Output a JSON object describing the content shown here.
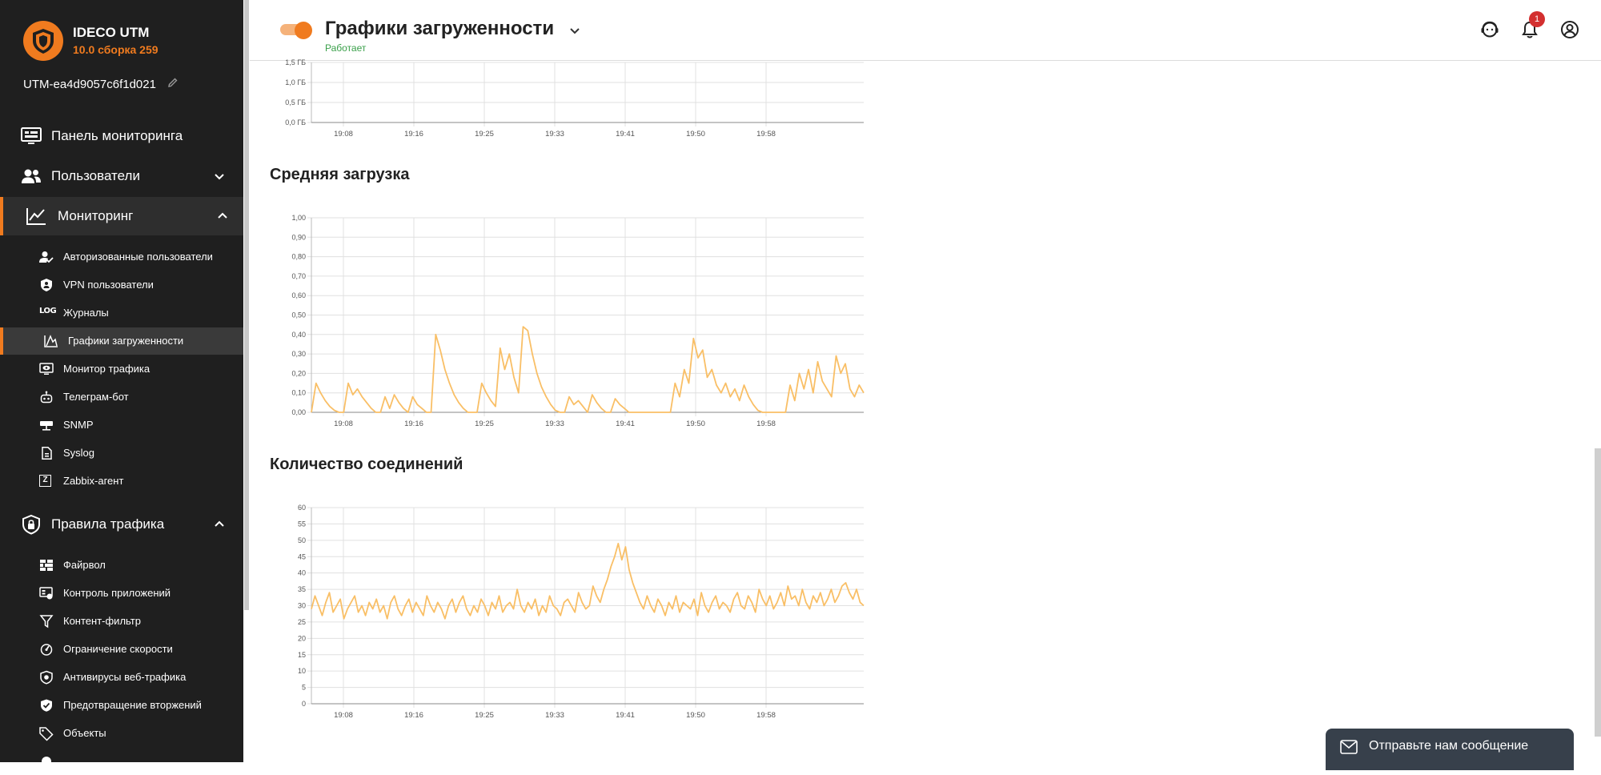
{
  "app": {
    "name": "IDECO UTM",
    "version": "10.0 сборка 259",
    "hostname": "UTM-ea4d9057c6f1d021"
  },
  "sidebar": {
    "main_items": [
      {
        "label": "Панель мониторинга",
        "icon": "dashboard-icon"
      },
      {
        "label": "Пользователи",
        "icon": "users-icon",
        "chevron": "down"
      },
      {
        "label": "Мониторинг",
        "icon": "chart-line-icon",
        "chevron": "up",
        "active": true
      },
      {
        "label": "Правила трафика",
        "icon": "shield-lock-icon",
        "chevron": "up"
      }
    ],
    "monitoring_items": [
      {
        "label": "Авторизованные пользователи",
        "icon": "user-check-icon"
      },
      {
        "label": "VPN пользователи",
        "icon": "vpn-user-icon"
      },
      {
        "label": "Журналы",
        "icon": "log-icon",
        "icon_text": "LOG"
      },
      {
        "label": "Графики загруженности",
        "icon": "area-chart-icon",
        "active": true
      },
      {
        "label": "Монитор трафика",
        "icon": "monitor-eye-icon"
      },
      {
        "label": "Телеграм-бот",
        "icon": "robot-icon"
      },
      {
        "label": "SNMP",
        "icon": "network-icon"
      },
      {
        "label": "Syslog",
        "icon": "file-icon"
      },
      {
        "label": "Zabbix-агент",
        "icon": "zabbix-icon",
        "icon_text": "Z"
      }
    ],
    "traffic_items": [
      {
        "label": "Файрвол",
        "icon": "firewall-icon"
      },
      {
        "label": "Контроль приложений",
        "icon": "app-control-icon"
      },
      {
        "label": "Контент-фильтр",
        "icon": "filter-icon"
      },
      {
        "label": "Ограничение скорости",
        "icon": "speed-icon"
      },
      {
        "label": "Антивирусы веб-трафика",
        "icon": "antivirus-icon"
      },
      {
        "label": "Предотвращение вторжений",
        "icon": "ips-icon"
      },
      {
        "label": "Объекты",
        "icon": "tag-icon"
      }
    ],
    "accent_color": "#f07b1f"
  },
  "header": {
    "title": "Графики загруженности",
    "status": "Работает",
    "notification_count": "1",
    "status_color": "#3aa04a"
  },
  "sections": {
    "load_title": "Средняя загрузка",
    "conn_title": "Количество соединений"
  },
  "chat": {
    "label": "Отправьте нам сообщение"
  },
  "chart_data": [
    {
      "type": "line",
      "title": "",
      "x_ticks": [
        "19:08",
        "19:16",
        "19:25",
        "19:33",
        "19:41",
        "19:50",
        "19:58"
      ],
      "y_ticks": [
        "0,0 ГБ",
        "0,5 ГБ",
        "1,0 ГБ",
        "1,5 ГБ"
      ],
      "ylim": [
        0,
        1.5
      ],
      "series": [
        {
          "values": []
        }
      ],
      "color": "#f9bf66",
      "partially_visible": true
    },
    {
      "type": "line",
      "title": "Средняя загрузка",
      "x_ticks": [
        "19:08",
        "19:16",
        "19:25",
        "19:33",
        "19:41",
        "19:50",
        "19:58"
      ],
      "y_ticks": [
        "0,00",
        "0,10",
        "0,20",
        "0,30",
        "0,40",
        "0,50",
        "0,60",
        "0,70",
        "0,80",
        "0,90",
        "1,00"
      ],
      "ylim": [
        0,
        1.0
      ],
      "color": "#f9bf66",
      "series": [
        {
          "values": [
            0.0,
            0.15,
            0.1,
            0.06,
            0.03,
            0.01,
            0.0,
            0.0,
            0.15,
            0.09,
            0.12,
            0.08,
            0.05,
            0.02,
            0.0,
            0.0,
            0.08,
            0.02,
            0.09,
            0.05,
            0.02,
            0.0,
            0.08,
            0.04,
            0.02,
            0.0,
            0.0,
            0.4,
            0.32,
            0.22,
            0.15,
            0.09,
            0.05,
            0.02,
            0.0,
            0.0,
            0.0,
            0.15,
            0.1,
            0.06,
            0.03,
            0.33,
            0.22,
            0.3,
            0.18,
            0.1,
            0.44,
            0.42,
            0.3,
            0.2,
            0.13,
            0.08,
            0.04,
            0.01,
            0.0,
            0.0,
            0.08,
            0.04,
            0.06,
            0.03,
            0.0,
            0.09,
            0.05,
            0.02,
            0.0,
            0.0,
            0.07,
            0.04,
            0.02,
            0.0,
            0.0,
            0.0,
            0.0,
            0.0,
            0.0,
            0.0,
            0.0,
            0.0,
            0.0,
            0.15,
            0.08,
            0.22,
            0.15,
            0.38,
            0.28,
            0.32,
            0.18,
            0.22,
            0.14,
            0.1,
            0.15,
            0.08,
            0.12,
            0.06,
            0.14,
            0.08,
            0.04,
            0.01,
            0.0,
            0.0,
            0.0,
            0.0,
            0.0,
            0.0,
            0.14,
            0.06,
            0.2,
            0.12,
            0.22,
            0.1,
            0.26,
            0.16,
            0.12,
            0.08,
            0.29,
            0.2,
            0.25,
            0.12,
            0.08,
            0.14,
            0.1
          ]
        }
      ]
    },
    {
      "type": "line",
      "title": "Количество соединений",
      "x_ticks": [
        "19:08",
        "19:16",
        "19:25",
        "19:33",
        "19:41",
        "19:50",
        "19:58"
      ],
      "y_ticks": [
        "0",
        "5",
        "10",
        "15",
        "20",
        "25",
        "30",
        "35",
        "40",
        "45",
        "50",
        "55",
        "60"
      ],
      "ylim": [
        0,
        60
      ],
      "color": "#f9bf66",
      "series": [
        {
          "values": [
            29,
            33,
            30,
            27,
            31,
            34,
            28,
            30,
            32,
            26,
            29,
            31,
            33,
            28,
            30,
            27,
            31,
            29,
            32,
            28,
            30,
            26,
            31,
            33,
            29,
            27,
            30,
            32,
            28,
            31,
            29,
            27,
            33,
            30,
            28,
            31,
            29,
            26,
            30,
            32,
            28,
            31,
            33,
            29,
            27,
            30,
            28,
            32,
            30,
            27,
            31,
            29,
            33,
            28,
            30,
            31,
            29,
            35,
            30,
            28,
            31,
            29,
            32,
            27,
            30,
            28,
            33,
            30,
            29,
            27,
            31,
            32,
            30,
            28,
            34,
            31,
            29,
            30,
            36,
            33,
            31,
            35,
            38,
            42,
            45,
            49,
            44,
            48,
            41,
            37,
            34,
            31,
            29,
            33,
            30,
            28,
            32,
            30,
            27,
            31,
            29,
            33,
            28,
            31,
            30,
            29,
            32,
            27,
            34,
            30,
            28,
            31,
            33,
            29,
            31,
            30,
            28,
            32,
            34,
            30,
            29,
            33,
            31,
            28,
            35,
            32,
            30,
            33,
            29,
            31,
            34,
            30,
            36,
            32,
            33,
            30,
            35,
            31,
            29,
            33,
            31,
            34,
            30,
            32,
            35,
            31,
            33,
            36,
            37,
            34,
            32,
            35,
            31,
            30
          ]
        }
      ]
    }
  ]
}
